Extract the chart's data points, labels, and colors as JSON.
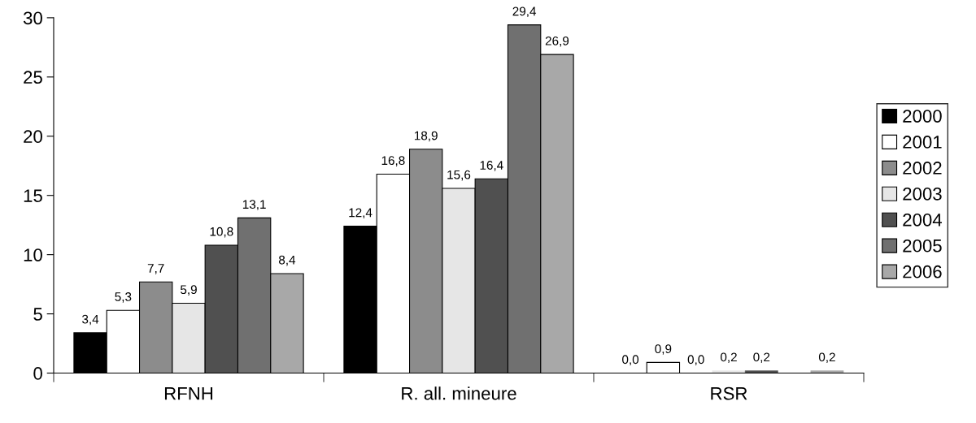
{
  "chart_data": {
    "type": "bar",
    "categories": [
      "RFNH",
      "R. all. mineure",
      "RSR"
    ],
    "series": [
      {
        "name": "2000",
        "color": "#000000",
        "values": [
          3.4,
          12.4,
          0.0
        ],
        "value_labels": [
          "3,4",
          "12,4",
          "0,0"
        ]
      },
      {
        "name": "2001",
        "color": "#ffffff",
        "values": [
          5.3,
          16.8,
          0.9
        ],
        "value_labels": [
          "5,3",
          "16,8",
          "0,9"
        ]
      },
      {
        "name": "2002",
        "color": "#8c8c8c",
        "values": [
          7.7,
          18.9,
          0.0
        ],
        "value_labels": [
          "7,7",
          "18,9",
          "0,0"
        ]
      },
      {
        "name": "2003",
        "color": "#e6e6e6",
        "values": [
          5.9,
          15.6,
          0.2
        ],
        "value_labels": [
          "5,9",
          "15,6",
          "0,2"
        ]
      },
      {
        "name": "2004",
        "color": "#505050",
        "values": [
          10.8,
          16.4,
          0.2
        ],
        "value_labels": [
          "10,8",
          "16,4",
          "0,2"
        ]
      },
      {
        "name": "2005",
        "color": "#707070",
        "values": [
          13.1,
          29.4,
          null
        ],
        "value_labels": [
          "13,1",
          "29,4",
          null
        ]
      },
      {
        "name": "2006",
        "color": "#a8a8a8",
        "values": [
          8.4,
          26.9,
          0.2
        ],
        "value_labels": [
          "8,4",
          "26,9",
          "0,2"
        ]
      }
    ],
    "ylim": [
      0,
      30
    ],
    "yticks": [
      0,
      5,
      10,
      15,
      20,
      25,
      30
    ],
    "grid": false,
    "legend": "right"
  }
}
